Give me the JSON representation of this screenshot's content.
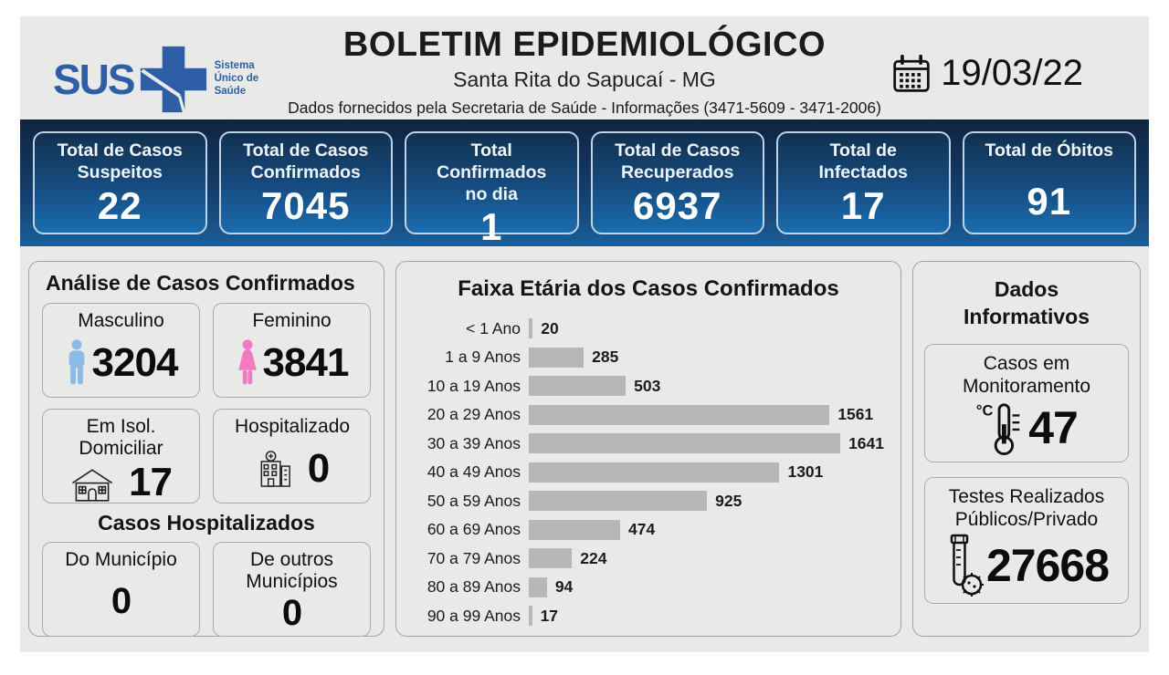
{
  "header": {
    "logo": {
      "text": "SUS",
      "tagline": "Sistema Único de Saúde"
    },
    "title": "BOLETIM EPIDEMIOLÓGICO",
    "subtitle": "Santa Rita do Sapucaí - MG",
    "info_line": "Dados fornecidos pela Secretaria de Saúde - Informações (3471-5609 - 3471-2006)",
    "date": "19/03/22"
  },
  "summary_cards": [
    {
      "label": "Total de Casos Suspeitos",
      "value": "22"
    },
    {
      "label": "Total de Casos Confirmados",
      "value": "7045"
    },
    {
      "label": "Total Confirmados no dia",
      "value": "1"
    },
    {
      "label": "Total de Casos Recuperados",
      "value": "6937"
    },
    {
      "label": "Total de Infectados",
      "value": "17"
    },
    {
      "label": "Total de Óbitos",
      "value": "91"
    }
  ],
  "analysis": {
    "title": "Análise de Casos Confirmados",
    "cards": [
      {
        "label": "Masculino",
        "value": "3204",
        "icon": "male-icon"
      },
      {
        "label": "Feminino",
        "value": "3841",
        "icon": "female-icon"
      },
      {
        "label": "Em Isol. Domiciliar",
        "value": "17",
        "icon": "house-icon"
      },
      {
        "label": "Hospitalizado",
        "value": "0",
        "icon": "hospital-icon"
      }
    ],
    "hospitalized": {
      "title": "Casos Hospitalizados",
      "cards": [
        {
          "label": "Do Município",
          "value": "0"
        },
        {
          "label": "De outros Municípios",
          "value": "0"
        }
      ]
    }
  },
  "chart_data": {
    "type": "bar",
    "orientation": "horizontal",
    "title": "Faixa Etária dos Casos Confirmados",
    "categories": [
      "< 1 Ano",
      "1 a 9 Anos",
      "10 a 19 Anos",
      "20 a 29 Anos",
      "30 a 39 Anos",
      "40 a 49 Anos",
      "50 a 59 Anos",
      "60 a 69 Anos",
      "70 a 79 Anos",
      "80 a 89 Anos",
      "90 a 99 Anos"
    ],
    "values": [
      20,
      285,
      503,
      1561,
      1641,
      1301,
      925,
      474,
      224,
      94,
      17
    ],
    "xlim": [
      0,
      1641
    ],
    "bar_color": "#b7b7b7",
    "grid": false,
    "data_labels": true
  },
  "info_panel": {
    "title": "Dados Informativos",
    "cards": [
      {
        "label": "Casos em Monitoramento",
        "value": "47",
        "icon": "thermometer-icon"
      },
      {
        "label": "Testes Realizados Públicos/Privado",
        "value": "27668",
        "icon": "test-tube-icon"
      }
    ]
  },
  "colors": {
    "band_top": "#0e2440",
    "band_bottom": "#1a6cae",
    "sus_blue": "#2e5ea6",
    "male_icon": "#8bbae6",
    "female_icon": "#f279c2",
    "bar_gray": "#b7b7b7",
    "page_bg": "#e9e9e7"
  }
}
